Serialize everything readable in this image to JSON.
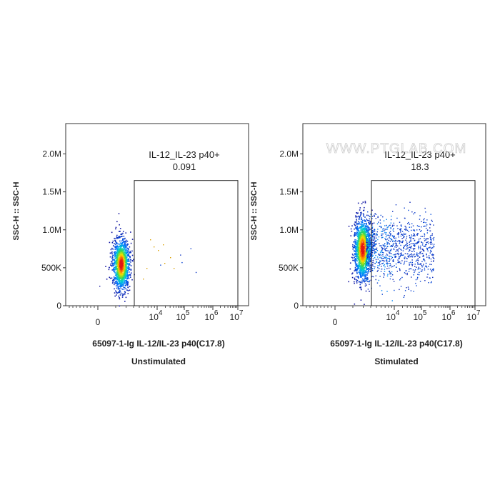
{
  "watermark": "WWW.PTGLAB.COM",
  "chart_data": [
    {
      "type": "scatter",
      "subtype": "flow-cytometry-density-dot-plot",
      "condition": "Unstimulated",
      "xlabel": "65097-1-Ig IL-12/IL-23 p40(C17.8)",
      "ylabel": "SSC-H :: SSC-H",
      "x_scale": "biexponential",
      "x_tick_labels": [
        "0",
        "10^4",
        "10^5",
        "10^6",
        "10^7"
      ],
      "y_tick_labels": [
        "0",
        "500K",
        "1.0M",
        "1.5M",
        "2.0M"
      ],
      "y_ticks": [
        0,
        500000,
        1000000,
        1500000,
        2000000
      ],
      "ylim": [
        0,
        2400000
      ],
      "gate": {
        "name": "IL-12_IL-23 p40+",
        "value": "0.091",
        "percent": 0.091,
        "y_range": [
          0,
          1650000
        ]
      },
      "population": {
        "center_y": 550000,
        "y_spread": [
          250000,
          950000
        ],
        "position": "main population left of gate"
      }
    },
    {
      "type": "scatter",
      "subtype": "flow-cytometry-density-dot-plot",
      "condition": "Stimulated",
      "xlabel": "65097-1-Ig IL-12/IL-23 p40(C17.8)",
      "ylabel": "SSC-H :: SSC-H",
      "x_scale": "biexponential",
      "x_tick_labels": [
        "0",
        "10^4",
        "10^5",
        "10^6",
        "10^7"
      ],
      "y_tick_labels": [
        "0",
        "500K",
        "1.0M",
        "1.5M",
        "2.0M"
      ],
      "y_ticks": [
        0,
        500000,
        1000000,
        1500000,
        2000000
      ],
      "ylim": [
        0,
        2400000
      ],
      "gate": {
        "name": "IL-12_IL-23 p40+",
        "value": "18.3",
        "percent": 18.3,
        "y_range": [
          0,
          1650000
        ]
      },
      "population": {
        "center_y": 750000,
        "y_spread": [
          450000,
          1300000
        ],
        "position": "main population with tail extending into gate"
      }
    }
  ]
}
